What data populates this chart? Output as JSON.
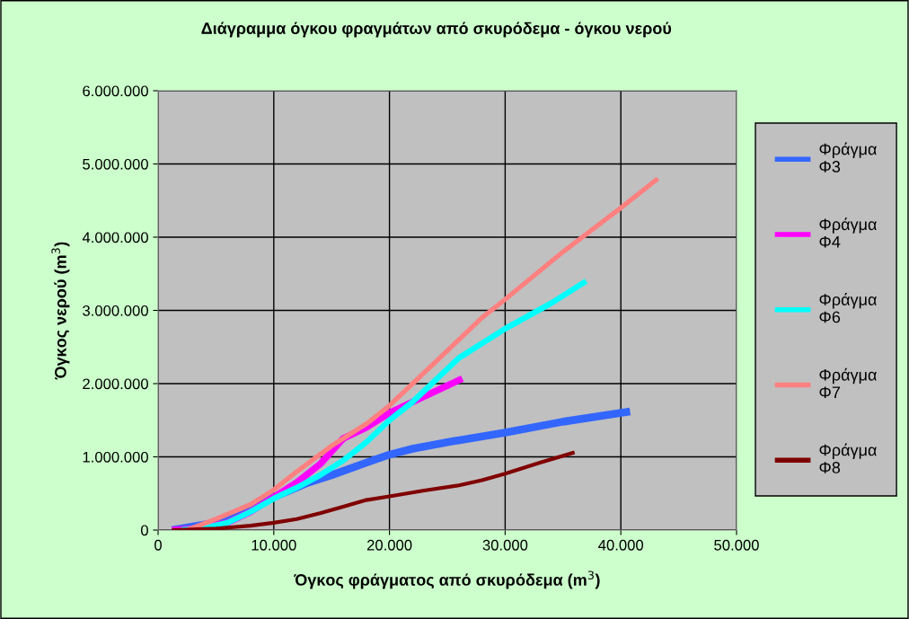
{
  "chart_data": {
    "type": "line",
    "title": "Διάγραμμα όγκου φραγμάτων από σκυρόδεμα - όγκου νερού",
    "xlabel": "Όγκος φράγματος από σκυρόδεμα (m$^{3}$)",
    "ylabel": "Όγκος νερού (m$^{3}$)",
    "xlim": [
      0,
      50000
    ],
    "ylim": [
      0,
      6000000
    ],
    "xticks": [
      0,
      {
        "value": 10000,
        "label": "10.000"
      },
      {
        "value": 20000,
        "label": "20.000"
      },
      {
        "value": 30000,
        "label": "30.000"
      },
      {
        "value": 40000,
        "label": "40.000"
      },
      {
        "value": 50000,
        "label": "50.000"
      }
    ],
    "yticks": [
      0,
      {
        "value": 1000000,
        "label": "1.000.000"
      },
      {
        "value": 2000000,
        "label": "2.000.000"
      },
      {
        "value": 3000000,
        "label": "3.000.000"
      },
      {
        "value": 4000000,
        "label": "4.000.000"
      },
      {
        "value": 5000000,
        "label": "5.000.000"
      },
      {
        "value": 6000000,
        "label": "6.000.000"
      }
    ],
    "grid": true,
    "legend": "right",
    "marker": "none",
    "line_style": "solid",
    "series": [
      {
        "name": "Φράγμα\nΦ3",
        "color": "#3366ff",
        "x": [
          1200,
          5000,
          10000,
          13000,
          15000,
          18000,
          20000,
          22000,
          25000,
          30000,
          35000,
          40800
        ],
        "values": [
          0,
          100000,
          450000,
          650000,
          750000,
          920000,
          1030000,
          1110000,
          1200000,
          1330000,
          1480000,
          1620000
        ]
      },
      {
        "name": "Φράγμα\nΦ4",
        "color": "#ff00ff",
        "x": [
          1200,
          3000,
          6000,
          8000,
          10000,
          12000,
          14000,
          16000,
          18000,
          20000,
          22000,
          26300
        ],
        "values": [
          0,
          20000,
          100000,
          250000,
          450000,
          650000,
          900000,
          1250000,
          1400000,
          1600000,
          1750000,
          2070000
        ]
      },
      {
        "name": "Φράγμα\nΦ6",
        "color": "#00ffff",
        "x": [
          2000,
          4000,
          6000,
          8000,
          10000,
          12000,
          14000,
          16000,
          18000,
          20000,
          22000,
          24000,
          26000,
          30000,
          34000,
          37000
        ],
        "values": [
          0,
          30000,
          100000,
          250000,
          430000,
          580000,
          750000,
          950000,
          1200000,
          1500000,
          1750000,
          2050000,
          2350000,
          2750000,
          3100000,
          3400000
        ]
      },
      {
        "name": "Φράγμα\nΦ7",
        "color": "#ff8080",
        "x": [
          2500,
          5000,
          8000,
          10000,
          12000,
          15000,
          18000,
          20000,
          22000,
          25000,
          28000,
          30000,
          35000,
          40000,
          43200
        ],
        "values": [
          0,
          150000,
          350000,
          550000,
          800000,
          1150000,
          1450000,
          1700000,
          2000000,
          2450000,
          2900000,
          3150000,
          3800000,
          4400000,
          4800000
        ]
      },
      {
        "name": "Φράγμα\nΦ8",
        "color": "#800000",
        "x": [
          1200,
          5000,
          8000,
          10000,
          12000,
          14000,
          16000,
          18000,
          20000,
          23000,
          26000,
          28000,
          30000,
          33000,
          36000
        ],
        "values": [
          0,
          20000,
          60000,
          100000,
          150000,
          230000,
          320000,
          410000,
          460000,
          540000,
          610000,
          680000,
          770000,
          920000,
          1060000
        ]
      }
    ]
  }
}
